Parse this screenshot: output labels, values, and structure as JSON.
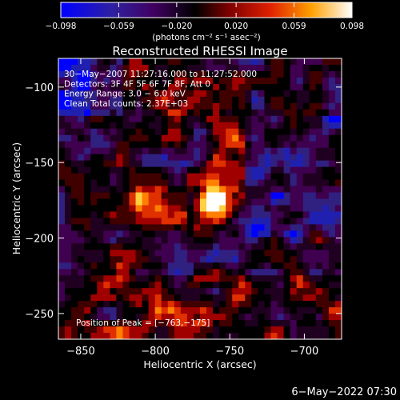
{
  "colorbar": {
    "ticks": [
      "−0.098",
      "−0.059",
      "−0.020",
      "0.020",
      "0.059",
      "0.098"
    ],
    "tick_values": [
      -0.098,
      -0.059,
      -0.02,
      0.02,
      0.059,
      0.098
    ],
    "range": [
      -0.098,
      0.098
    ],
    "unit_label": "(photons cm⁻² s⁻¹ asec⁻²)"
  },
  "chart_data": {
    "type": "heatmap",
    "title": "Reconstructed RHESSI Image",
    "xlabel": "Heliocentric X (arcsec)",
    "ylabel": "Heliocentric Y (arcsec)",
    "xlim": [
      -865,
      -675
    ],
    "ylim": [
      -267,
      -81
    ],
    "xticks": [
      -850,
      -800,
      -750,
      -700
    ],
    "yticks": [
      -100,
      -150,
      -200,
      -250
    ],
    "xtick_labels": [
      "−850",
      "−800",
      "−750",
      "−700"
    ],
    "ytick_labels": [
      "−100",
      "−150",
      "−200",
      "−250"
    ],
    "peak": [
      -763,
      -175
    ],
    "annotations": [
      "30−May−2007 11:27:16.000 to 11:27:52.000",
      "Detectors: 3F 4F 5F 6F 7F 8F, Att 0",
      "Energy Range: 3.0 − 6.0 keV",
      "Clean      Total counts: 2.37E+03"
    ],
    "peak_label": "Position of Peak = [−763,−175]",
    "colormap": [
      "#0000ff",
      "#2020b0",
      "#302080",
      "#400050",
      "#200020",
      "#000000",
      "#400000",
      "#a00000",
      "#e03000",
      "#ff8000",
      "#ffd040",
      "#ffffff"
    ]
  },
  "footer": {
    "date": "6−May−2022 07:30"
  }
}
